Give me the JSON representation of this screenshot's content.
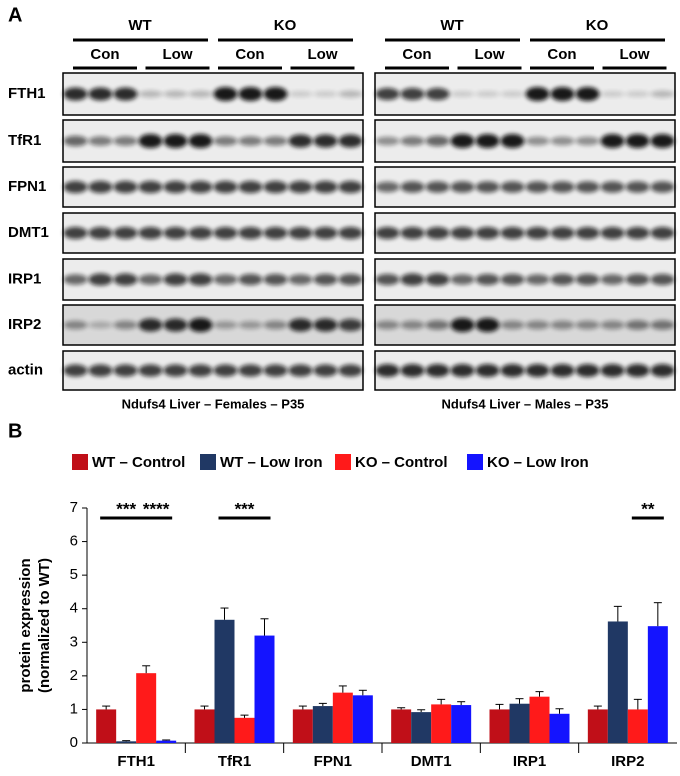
{
  "panel_a": {
    "label": "A",
    "proteins": [
      "FTH1",
      "TfR1",
      "FPN1",
      "DMT1",
      "IRP1",
      "IRP2",
      "actin"
    ],
    "blots": [
      {
        "groups": [
          "WT",
          "KO"
        ],
        "conditions": [
          "Con",
          "Low",
          "Con",
          "Low"
        ],
        "caption": "Ndufs4 Liver – Females – P35"
      },
      {
        "groups": [
          "WT",
          "KO"
        ],
        "conditions": [
          "Con",
          "Low",
          "Con",
          "Low"
        ],
        "caption": "Ndufs4 Liver – Males – P35"
      }
    ]
  },
  "chart_data": {
    "type": "bar",
    "panel_label": "B",
    "ylabel": [
      "protein expression",
      "(normalized to WT)"
    ],
    "categories": [
      "FTH1",
      "TfR1",
      "FPN1",
      "DMT1",
      "IRP1",
      "IRP2"
    ],
    "series": [
      {
        "name": "WT – Control",
        "color": "#c00f18",
        "values": [
          1,
          1,
          1,
          1,
          1,
          1
        ],
        "errors": [
          0.1,
          0.1,
          0.1,
          0.05,
          0.15,
          0.1
        ]
      },
      {
        "name": "WT – Low Iron",
        "color": "#203864",
        "values": [
          0.05,
          3.67,
          1.1,
          0.92,
          1.17,
          3.62
        ],
        "errors": [
          0.02,
          0.35,
          0.08,
          0.07,
          0.15,
          0.45
        ]
      },
      {
        "name": "KO – Control",
        "color": "#ff1a1a",
        "values": [
          2.08,
          0.75,
          1.5,
          1.15,
          1.38,
          1.0
        ],
        "errors": [
          0.22,
          0.08,
          0.2,
          0.15,
          0.15,
          0.3
        ]
      },
      {
        "name": "KO – Low Iron",
        "color": "#1414ff",
        "values": [
          0.07,
          3.2,
          1.42,
          1.13,
          0.87,
          3.48
        ],
        "errors": [
          0.02,
          0.5,
          0.15,
          0.1,
          0.15,
          0.7
        ]
      }
    ],
    "annotations": [
      {
        "text": "***",
        "category": 0,
        "from": 0,
        "to": 2
      },
      {
        "text": "****",
        "category": 0,
        "from": 2,
        "to": 3
      },
      {
        "text": "***",
        "category": 1,
        "from": 1,
        "to": 3
      },
      {
        "text": "**",
        "category": 5,
        "from": 2,
        "to": 3
      }
    ],
    "ylim": [
      0,
      7
    ],
    "yticks": [
      0,
      1,
      2,
      3,
      4,
      5,
      6,
      7
    ]
  }
}
